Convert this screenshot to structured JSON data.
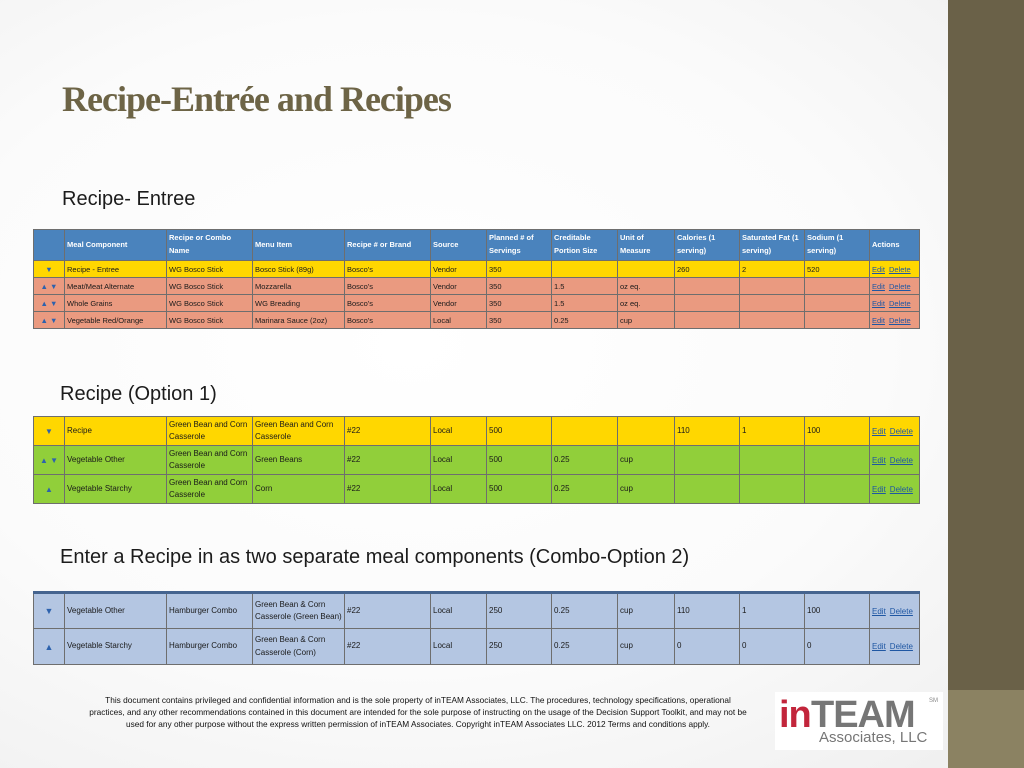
{
  "title": "Recipe-Entrée and Recipes",
  "section1_label": "Recipe- Entree",
  "section2_label": "Recipe (Option 1)",
  "section3_label": "Enter a Recipe in as two separate meal components (Combo-Option 2)",
  "colors": {
    "header_blue": "#4a83bd",
    "yellow_row": "#ffd700",
    "salmon_row": "#ea9a80",
    "green_row": "#91cf3a",
    "blue_row": "#b4c6e2",
    "sidebar": "#6a6148",
    "title": "#6d6446",
    "logo_red": "#c2253b"
  },
  "table1": {
    "headers": [
      "",
      "Meal Component",
      "Recipe or Combo Name",
      "Menu Item",
      "Recipe # or Brand",
      "Source",
      "Planned # of Servings",
      "Creditable Portion Size",
      "Unit of Measure",
      "Calories (1 serving)",
      "Saturated Fat (1 serving)",
      "Sodium (1 serving)",
      "Actions"
    ],
    "rows": [
      {
        "arrows": "▼",
        "cells": [
          "Recipe - Entree",
          "WG Bosco Stick",
          "Bosco Stick (89g)",
          "Bosco's",
          "Vendor",
          "350",
          "",
          "",
          "260",
          "2",
          "520"
        ]
      },
      {
        "arrows": "▲ ▼",
        "cells": [
          "Meat/Meat Alternate",
          "WG Bosco Stick",
          "Mozzarella",
          "Bosco's",
          "Vendor",
          "350",
          "1.5",
          "oz eq.",
          "",
          "",
          ""
        ]
      },
      {
        "arrows": "▲ ▼",
        "cells": [
          "Whole Grains",
          "WG Bosco Stick",
          "WG Breading",
          "Bosco's",
          "Vendor",
          "350",
          "1.5",
          "oz eq.",
          "",
          "",
          ""
        ]
      },
      {
        "arrows": "▲ ▼",
        "cells": [
          "Vegetable Red/Orange",
          "WG Bosco Stick",
          "Marinara Sauce (2oz)",
          "Bosco's",
          "Local",
          "350",
          "0.25",
          "cup",
          "",
          "",
          ""
        ]
      }
    ]
  },
  "table2": {
    "rows": [
      {
        "arrows": "▼",
        "cells": [
          "Recipe",
          "Green Bean and Corn Casserole",
          "Green Bean and Corn Casserole",
          "#22",
          "Local",
          "500",
          "",
          "",
          "110",
          "1",
          "100"
        ]
      },
      {
        "arrows": "▲ ▼",
        "cells": [
          "Vegetable Other",
          "Green Bean and Corn Casserole",
          "Green Beans",
          "#22",
          "Local",
          "500",
          "0.25",
          "cup",
          "",
          "",
          ""
        ]
      },
      {
        "arrows": "▲",
        "cells": [
          "Vegetable Starchy",
          "Green Bean and Corn Casserole",
          "Corn",
          "#22",
          "Local",
          "500",
          "0.25",
          "cup",
          "",
          "",
          ""
        ]
      }
    ]
  },
  "table3": {
    "rows": [
      {
        "arrows": "▼",
        "cells": [
          "Vegetable Other",
          "Hamburger Combo",
          "Green Bean & Corn Casserole (Green Bean)",
          "#22",
          "Local",
          "250",
          "0.25",
          "cup",
          "110",
          "1",
          "100"
        ]
      },
      {
        "arrows": "▲",
        "cells": [
          "Vegetable Starchy",
          "Hamburger Combo",
          "Green Bean & Corn Casserole (Corn)",
          "#22",
          "Local",
          "250",
          "0.25",
          "cup",
          "0",
          "0",
          "0"
        ]
      }
    ]
  },
  "actions": {
    "edit": "Edit",
    "delete": "Delete"
  },
  "footer": "This document contains privileged and confidential information and is the sole property of inTEAM Associates, LLC. The procedures, technology specifications, operational practices, and any other recommendations contained in this document are intended for the sole purpose of instructing on the usage of the Decision Support Toolkit, and may not be used for any other purpose without the express written permission of inTEAM Associates. Copyright inTEAM Associates LLC. 2012 Terms and conditions apply.",
  "logo": {
    "in": "in",
    "team": "TEAM",
    "sm": "SM",
    "subtitle": "Associates, LLC"
  }
}
